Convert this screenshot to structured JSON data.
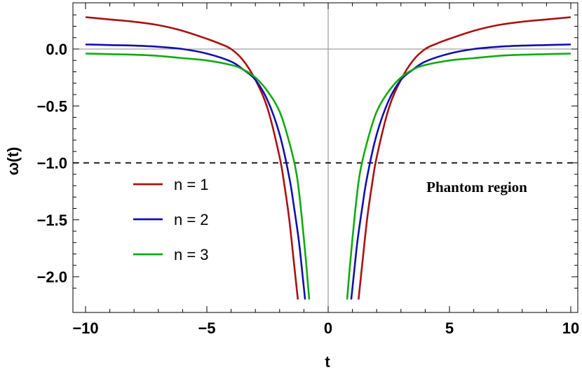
{
  "chart_data": {
    "type": "line",
    "xlabel": "t",
    "ylabel": "ω(t)",
    "xlim": [
      -10,
      10
    ],
    "ylim": [
      -2.3,
      0.35
    ],
    "xticks": [
      -10,
      -5,
      0,
      5,
      10
    ],
    "xtick_labels": [
      "−10",
      "−5",
      "0",
      "5",
      "10"
    ],
    "yticks": [
      0.0,
      -0.5,
      -1.0,
      -1.5,
      -2.0
    ],
    "ytick_labels": [
      "0.0",
      "−0.5",
      "−1.0",
      "−1.5",
      "−2.0"
    ],
    "reference_line": {
      "y": -1.0,
      "style": "dashed",
      "color": "#000000"
    },
    "annotation": "Phantom region",
    "legend_position": "lower-left",
    "series": [
      {
        "name": "n = 1",
        "color": "#aa1111",
        "x": [
          -10,
          -9,
          -8,
          -7,
          -6,
          -5,
          -4.5,
          -4,
          -3.5,
          -3,
          -2.5,
          -2,
          -1.8,
          -1.6,
          -1.4,
          -1.25,
          1.25,
          1.4,
          1.6,
          1.8,
          2,
          2.5,
          3,
          3.5,
          4,
          4.5,
          5,
          6,
          7,
          8,
          9,
          10
        ],
        "y": [
          0.28,
          0.26,
          0.24,
          0.21,
          0.16,
          0.09,
          0.05,
          0.0,
          -0.1,
          -0.27,
          -0.52,
          -0.95,
          -1.2,
          -1.5,
          -1.9,
          -2.2,
          -2.2,
          -1.9,
          -1.5,
          -1.2,
          -0.95,
          -0.52,
          -0.27,
          -0.1,
          0.0,
          0.05,
          0.09,
          0.16,
          0.21,
          0.24,
          0.26,
          0.28
        ]
      },
      {
        "name": "n = 2",
        "color": "#1111aa",
        "x": [
          -10,
          -9,
          -8,
          -7,
          -6,
          -5,
          -4,
          -3.5,
          -3,
          -2.5,
          -2,
          -1.6,
          -1.4,
          -1.2,
          -1.05,
          -0.95,
          0.95,
          1.05,
          1.2,
          1.4,
          1.6,
          2,
          2.5,
          3,
          3.5,
          4,
          5,
          6,
          7,
          8,
          9,
          10
        ],
        "y": [
          0.04,
          0.035,
          0.03,
          0.02,
          0.0,
          -0.04,
          -0.11,
          -0.18,
          -0.27,
          -0.45,
          -0.75,
          -1.13,
          -1.4,
          -1.7,
          -2.0,
          -2.2,
          -2.2,
          -2.0,
          -1.7,
          -1.4,
          -1.13,
          -0.75,
          -0.45,
          -0.27,
          -0.18,
          -0.11,
          -0.04,
          0.0,
          0.02,
          0.03,
          0.035,
          0.04
        ]
      },
      {
        "name": "n = 3",
        "color": "#11aa11",
        "x": [
          -10,
          -9,
          -8,
          -7,
          -6,
          -5,
          -4,
          -3.5,
          -3,
          -2.5,
          -2,
          -1.6,
          -1.3,
          -1.1,
          -0.9,
          -0.78,
          0.78,
          0.9,
          1.1,
          1.3,
          1.6,
          2,
          2.5,
          3,
          3.5,
          4,
          5,
          6,
          7,
          8,
          9,
          10
        ],
        "y": [
          -0.04,
          -0.045,
          -0.05,
          -0.06,
          -0.08,
          -0.1,
          -0.14,
          -0.18,
          -0.25,
          -0.37,
          -0.55,
          -0.82,
          -1.1,
          -1.45,
          -1.9,
          -2.2,
          -2.2,
          -1.9,
          -1.45,
          -1.1,
          -0.82,
          -0.55,
          -0.37,
          -0.25,
          -0.18,
          -0.14,
          -0.1,
          -0.08,
          -0.06,
          -0.05,
          -0.045,
          -0.04
        ]
      }
    ]
  }
}
